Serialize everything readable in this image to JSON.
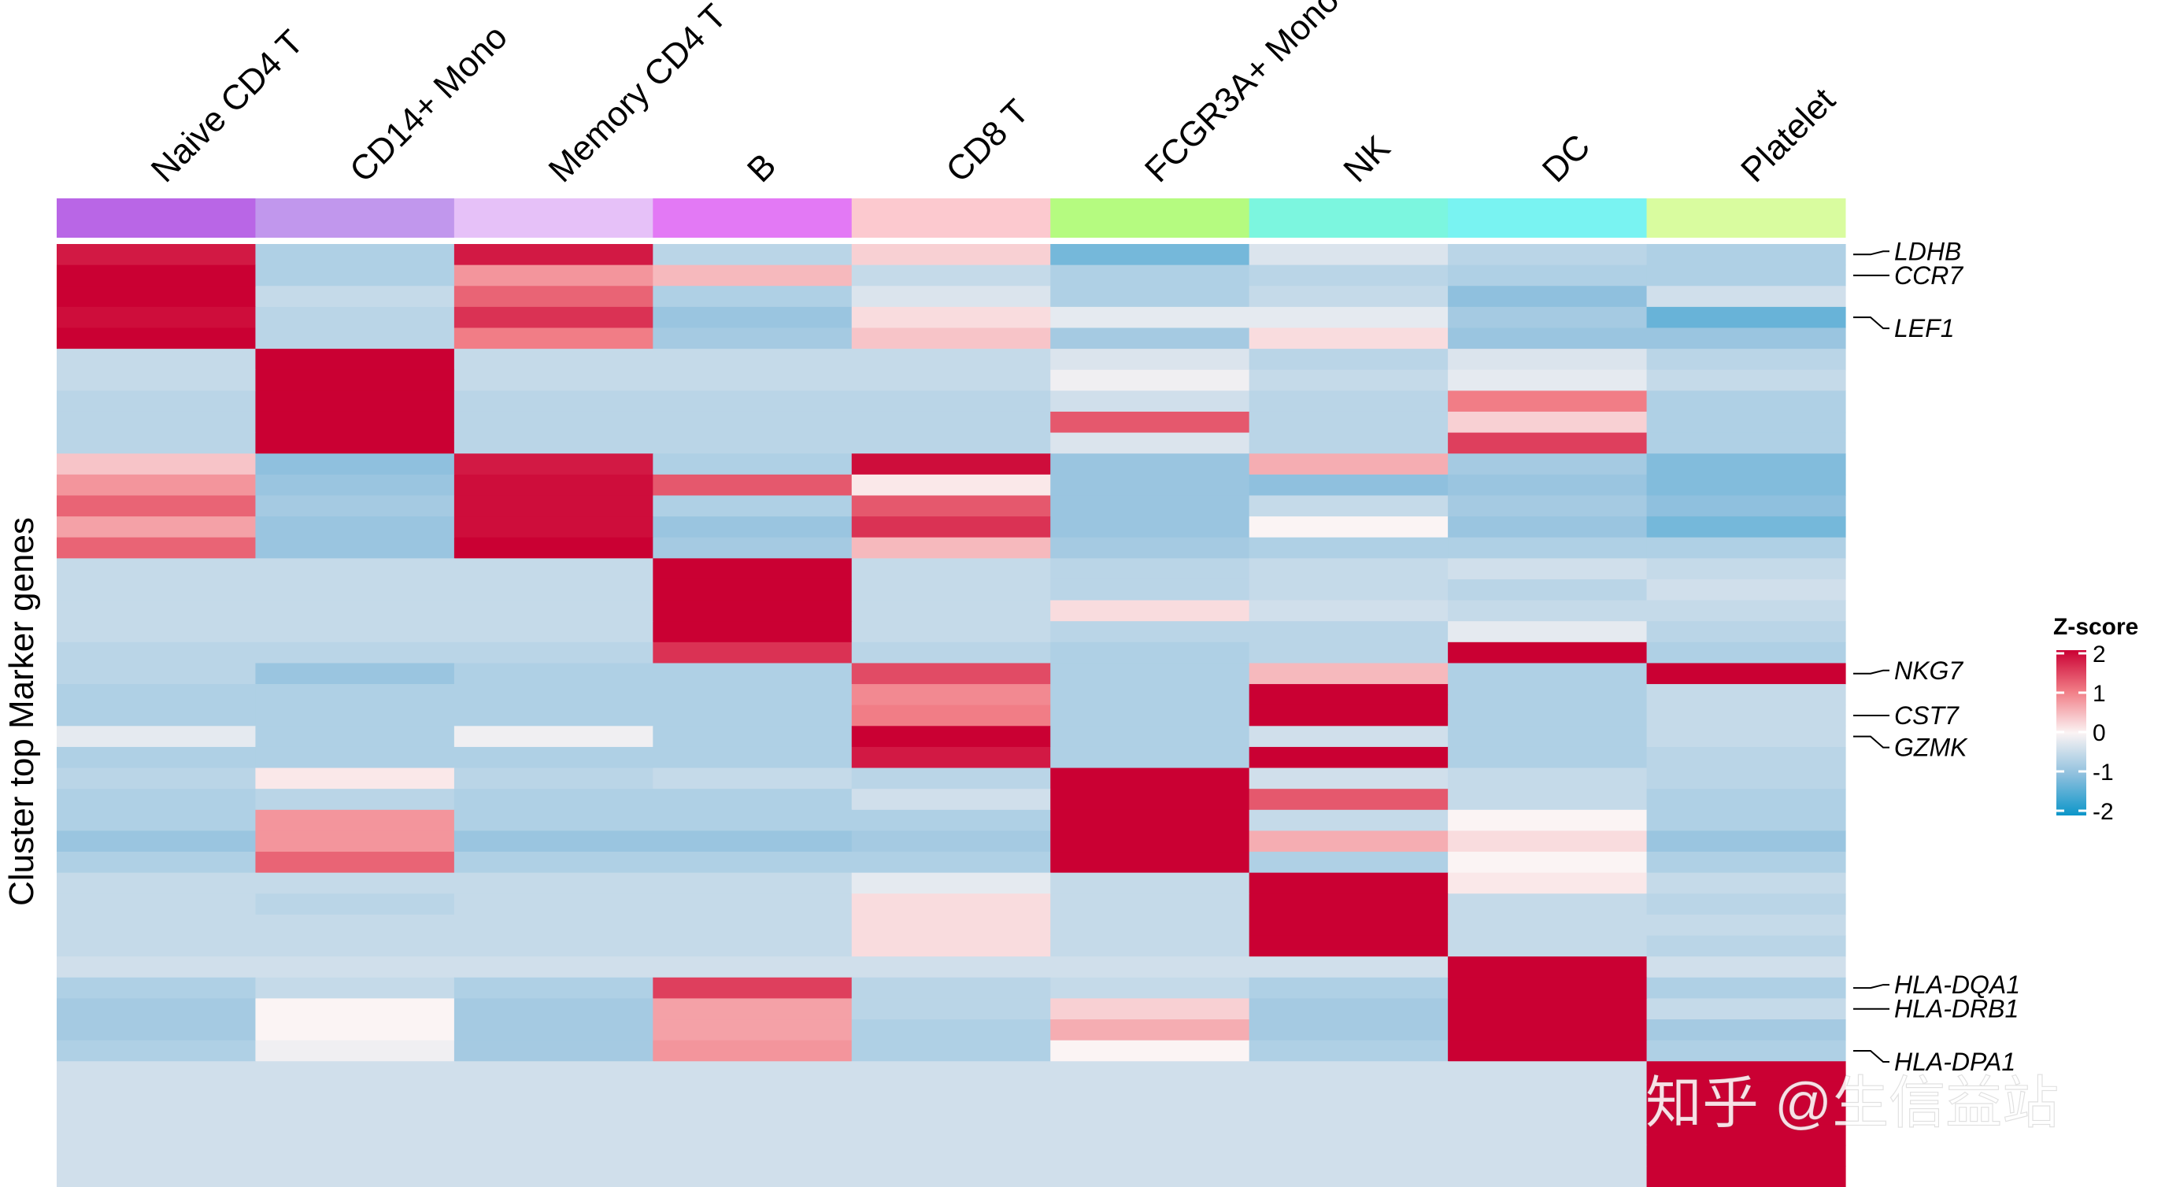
{
  "chart_data": {
    "type": "heatmap",
    "ylabel": "Cluster top Marker genes",
    "columns": [
      "Naive CD4 T",
      "CD14+ Mono",
      "Memory CD4 T",
      "B",
      "CD8 T",
      "FCGR3A+ Mono",
      "NK",
      "DC",
      "Platelet"
    ],
    "column_colors": [
      "#b966e6",
      "#c197ed",
      "#e6c1f8",
      "#e379f5",
      "#fcc9cf",
      "#b5fb80",
      "#7cf6df",
      "#79f3f2",
      "#d9fc9f"
    ],
    "colorbar": {
      "title": "Z-score",
      "min": -2,
      "max": 2,
      "ticks": [
        "2",
        "1",
        "0",
        "-1",
        "-2"
      ]
    },
    "labeled_genes": [
      {
        "gene": "LDHB",
        "row": 0
      },
      {
        "gene": "CCR7",
        "row": 1
      },
      {
        "gene": "LEF1",
        "row": 3
      },
      {
        "gene": "NKG7",
        "row": 20
      },
      {
        "gene": "CST7",
        "row": 22
      },
      {
        "gene": "GZMK",
        "row": 23
      },
      {
        "gene": "HLA-DQA1",
        "row": 35
      },
      {
        "gene": "HLA-DRB1",
        "row": 36
      },
      {
        "gene": "HLA-DPA1",
        "row": 38
      }
    ],
    "row_count": 45,
    "rows": [
      [
        1.8,
        -0.7,
        1.8,
        -0.6,
        0.3,
        -1.2,
        -0.3,
        -0.6,
        -0.7
      ],
      [
        2.2,
        -0.7,
        0.8,
        0.5,
        -0.5,
        -0.7,
        -0.6,
        -0.7,
        -0.7
      ],
      [
        2.2,
        -0.5,
        1.2,
        -0.7,
        -0.3,
        -0.7,
        -0.5,
        -1.0,
        -0.4
      ],
      [
        1.9,
        -0.6,
        1.6,
        -0.9,
        0.2,
        -0.2,
        -0.2,
        -0.8,
        -1.3
      ],
      [
        2.2,
        -0.6,
        1.0,
        -0.8,
        0.4,
        -0.8,
        0.2,
        -0.9,
        -0.9
      ],
      [
        -0.5,
        2.2,
        -0.5,
        -0.5,
        -0.5,
        -0.3,
        -0.6,
        -0.3,
        -0.6
      ],
      [
        -0.5,
        2.2,
        -0.5,
        -0.5,
        -0.5,
        -0.1,
        -0.5,
        -0.2,
        -0.5
      ],
      [
        -0.6,
        2.2,
        -0.6,
        -0.6,
        -0.6,
        -0.4,
        -0.6,
        1.0,
        -0.7
      ],
      [
        -0.6,
        2.2,
        -0.6,
        -0.6,
        -0.6,
        1.3,
        -0.6,
        0.3,
        -0.7
      ],
      [
        -0.6,
        2.2,
        -0.6,
        -0.6,
        -0.6,
        -0.3,
        -0.6,
        1.5,
        -0.7
      ],
      [
        0.4,
        -1.0,
        1.8,
        -0.7,
        1.9,
        -0.9,
        0.6,
        -0.8,
        -1.1
      ],
      [
        0.8,
        -0.9,
        1.9,
        1.3,
        0.1,
        -0.9,
        -1.0,
        -0.9,
        -1.1
      ],
      [
        1.2,
        -0.8,
        1.9,
        -0.7,
        1.3,
        -0.9,
        -0.5,
        -0.8,
        -1.0
      ],
      [
        0.7,
        -0.9,
        1.9,
        -0.9,
        1.6,
        -0.9,
        0.0,
        -0.9,
        -1.2
      ],
      [
        1.2,
        -0.9,
        2.2,
        -0.8,
        0.5,
        -0.8,
        -0.7,
        -0.7,
        -0.7
      ],
      [
        -0.5,
        -0.5,
        -0.5,
        2.2,
        -0.5,
        -0.6,
        -0.5,
        -0.4,
        -0.5
      ],
      [
        -0.5,
        -0.5,
        -0.5,
        2.2,
        -0.5,
        -0.6,
        -0.5,
        -0.6,
        -0.4
      ],
      [
        -0.5,
        -0.5,
        -0.5,
        2.2,
        -0.5,
        0.2,
        -0.4,
        -0.5,
        -0.5
      ],
      [
        -0.5,
        -0.5,
        -0.5,
        2.2,
        -0.5,
        -0.6,
        -0.6,
        -0.2,
        -0.6
      ],
      [
        -0.6,
        -0.6,
        -0.6,
        1.6,
        -0.6,
        -0.7,
        -0.6,
        2.2,
        -0.7
      ],
      [
        -0.6,
        -0.9,
        -0.7,
        -0.7,
        1.4,
        -0.7,
        0.5,
        -0.7,
        2.2
      ],
      [
        -0.7,
        -0.7,
        -0.7,
        -0.7,
        0.9,
        -0.7,
        2.2,
        -0.7,
        -0.5
      ],
      [
        -0.7,
        -0.7,
        -0.7,
        -0.7,
        1.0,
        -0.7,
        2.2,
        -0.7,
        -0.5
      ],
      [
        -0.2,
        -0.7,
        -0.1,
        -0.7,
        2.2,
        -0.7,
        -0.4,
        -0.7,
        -0.5
      ],
      [
        -0.7,
        -0.7,
        -0.7,
        -0.7,
        1.8,
        -0.7,
        2.0,
        -0.7,
        -0.6
      ],
      [
        -0.6,
        0.1,
        -0.6,
        -0.5,
        -0.6,
        2.2,
        -0.4,
        -0.5,
        -0.6
      ],
      [
        -0.7,
        -0.6,
        -0.7,
        -0.7,
        -0.4,
        2.2,
        1.3,
        -0.5,
        -0.7
      ],
      [
        -0.7,
        0.8,
        -0.7,
        -0.7,
        -0.7,
        2.2,
        -0.5,
        0.0,
        -0.7
      ],
      [
        -0.9,
        0.8,
        -0.9,
        -0.9,
        -0.8,
        2.2,
        0.6,
        0.2,
        -0.9
      ],
      [
        -0.7,
        1.2,
        -0.7,
        -0.7,
        -0.7,
        2.2,
        -0.7,
        0.0,
        -0.7
      ],
      [
        -0.5,
        -0.5,
        -0.5,
        -0.5,
        -0.2,
        -0.5,
        2.2,
        0.1,
        -0.5
      ],
      [
        -0.5,
        -0.6,
        -0.5,
        -0.5,
        0.2,
        -0.5,
        2.2,
        -0.5,
        -0.6
      ],
      [
        -0.5,
        -0.5,
        -0.5,
        -0.5,
        0.2,
        -0.5,
        2.2,
        -0.5,
        -0.5
      ],
      [
        -0.5,
        -0.5,
        -0.5,
        -0.5,
        0.2,
        -0.5,
        2.2,
        -0.5,
        -0.6
      ],
      [
        -0.4,
        -0.4,
        -0.4,
        -0.4,
        -0.4,
        -0.4,
        -0.4,
        2.2,
        -0.4
      ],
      [
        -0.7,
        -0.5,
        -0.7,
        1.5,
        -0.6,
        -0.5,
        -0.7,
        2.2,
        -0.7
      ],
      [
        -0.8,
        0.0,
        -0.8,
        0.7,
        -0.6,
        0.3,
        -0.8,
        2.2,
        -0.5
      ],
      [
        -0.8,
        0.0,
        -0.8,
        0.7,
        -0.7,
        0.6,
        -0.8,
        2.2,
        -0.8
      ],
      [
        -0.7,
        -0.1,
        -0.8,
        0.8,
        -0.7,
        0.0,
        -0.7,
        2.2,
        -0.7
      ],
      [
        -0.4,
        -0.4,
        -0.4,
        -0.4,
        -0.4,
        -0.4,
        -0.4,
        -0.4,
        2.2
      ],
      [
        -0.4,
        -0.4,
        -0.4,
        -0.4,
        -0.4,
        -0.4,
        -0.4,
        -0.4,
        2.2
      ],
      [
        -0.4,
        -0.4,
        -0.4,
        -0.4,
        -0.4,
        -0.4,
        -0.4,
        -0.4,
        2.2
      ],
      [
        -0.4,
        -0.4,
        -0.4,
        -0.4,
        -0.4,
        -0.4,
        -0.4,
        -0.4,
        2.2
      ],
      [
        -0.4,
        -0.4,
        -0.4,
        -0.4,
        -0.4,
        -0.4,
        -0.4,
        -0.4,
        2.2
      ],
      [
        -0.4,
        -0.4,
        -0.4,
        -0.4,
        -0.4,
        -0.4,
        -0.4,
        -0.4,
        2.2
      ]
    ]
  },
  "watermark": "知乎 @生信益站"
}
